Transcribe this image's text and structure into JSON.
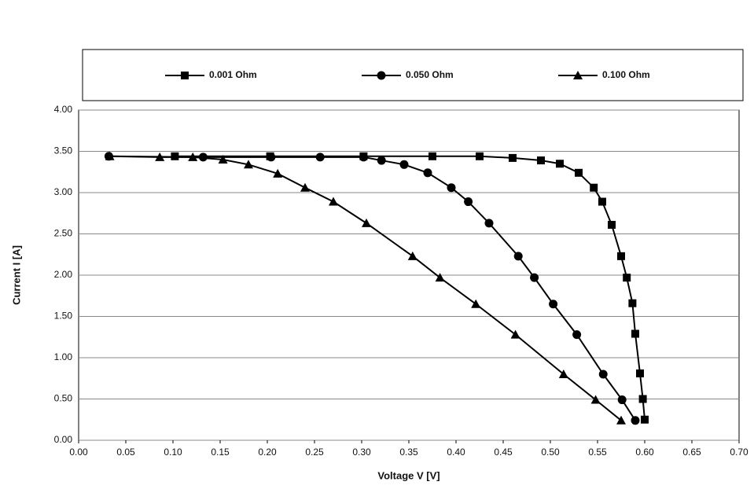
{
  "chart_data": {
    "type": "line",
    "xlabel": "Voltage V  [V]",
    "ylabel": "Current I  [A]",
    "xlim": [
      0,
      0.7
    ],
    "ylim": [
      0,
      4
    ],
    "xticks": [
      {
        "value": 0,
        "label": "0.00"
      },
      {
        "value": 0.05,
        "label": "0.05"
      },
      {
        "value": 0.1,
        "label": "0.10"
      },
      {
        "value": 0.15,
        "label": "0.15"
      },
      {
        "value": 0.2,
        "label": "0.20"
      },
      {
        "value": 0.25,
        "label": "0.25"
      },
      {
        "value": 0.3,
        "label": "0.30"
      },
      {
        "value": 0.35,
        "label": "0.35"
      },
      {
        "value": 0.4,
        "label": "0.40"
      },
      {
        "value": 0.45,
        "label": "0.45"
      },
      {
        "value": 0.5,
        "label": "0.50"
      },
      {
        "value": 0.55,
        "label": "0.55"
      },
      {
        "value": 0.6,
        "label": "0.60"
      },
      {
        "value": 0.65,
        "label": "0.65"
      },
      {
        "value": 0.7,
        "label": "0.70"
      }
    ],
    "yticks": [
      {
        "value": 0,
        "label": "0.00"
      },
      {
        "value": 0.5,
        "label": "0.50"
      },
      {
        "value": 1,
        "label": "1.00"
      },
      {
        "value": 1.5,
        "label": "1.50"
      },
      {
        "value": 2,
        "label": "2.00"
      },
      {
        "value": 2.5,
        "label": "2.50"
      },
      {
        "value": 3,
        "label": "3.00"
      },
      {
        "value": 3.5,
        "label": "3.50"
      },
      {
        "value": 4,
        "label": "4.00"
      }
    ],
    "grid": true,
    "legend": "top",
    "series": [
      {
        "name": "0.001 Ohm",
        "color": "#000000",
        "marker": "square",
        "x": [
          0.102,
          0.203,
          0.302,
          0.375,
          0.425,
          0.46,
          0.49,
          0.51,
          0.53,
          0.546,
          0.555,
          0.565,
          0.575,
          0.581,
          0.587,
          0.59,
          0.595,
          0.598,
          0.6
        ],
        "values": [
          3.44,
          3.44,
          3.44,
          3.44,
          3.44,
          3.42,
          3.39,
          3.35,
          3.24,
          3.06,
          2.89,
          2.61,
          2.23,
          1.97,
          1.66,
          1.29,
          0.81,
          0.5,
          0.25
        ]
      },
      {
        "name": "0.050 Ohm",
        "color": "#000000",
        "marker": "circle",
        "x": [
          0.032,
          0.132,
          0.204,
          0.256,
          0.302,
          0.321,
          0.345,
          0.37,
          0.395,
          0.413,
          0.435,
          0.466,
          0.483,
          0.503,
          0.528,
          0.556,
          0.576,
          0.59
        ],
        "values": [
          3.44,
          3.43,
          3.43,
          3.43,
          3.43,
          3.39,
          3.34,
          3.24,
          3.06,
          2.89,
          2.63,
          2.23,
          1.97,
          1.65,
          1.28,
          0.8,
          0.49,
          0.24
        ]
      },
      {
        "name": "0.100 Ohm",
        "color": "#000000",
        "marker": "triangle",
        "x": [
          0.033,
          0.086,
          0.121,
          0.153,
          0.18,
          0.211,
          0.24,
          0.27,
          0.305,
          0.354,
          0.383,
          0.421,
          0.463,
          0.514,
          0.548,
          0.575
        ],
        "values": [
          3.44,
          3.43,
          3.43,
          3.4,
          3.34,
          3.23,
          3.06,
          2.89,
          2.63,
          2.23,
          1.97,
          1.65,
          1.28,
          0.8,
          0.49,
          0.24
        ]
      }
    ]
  }
}
